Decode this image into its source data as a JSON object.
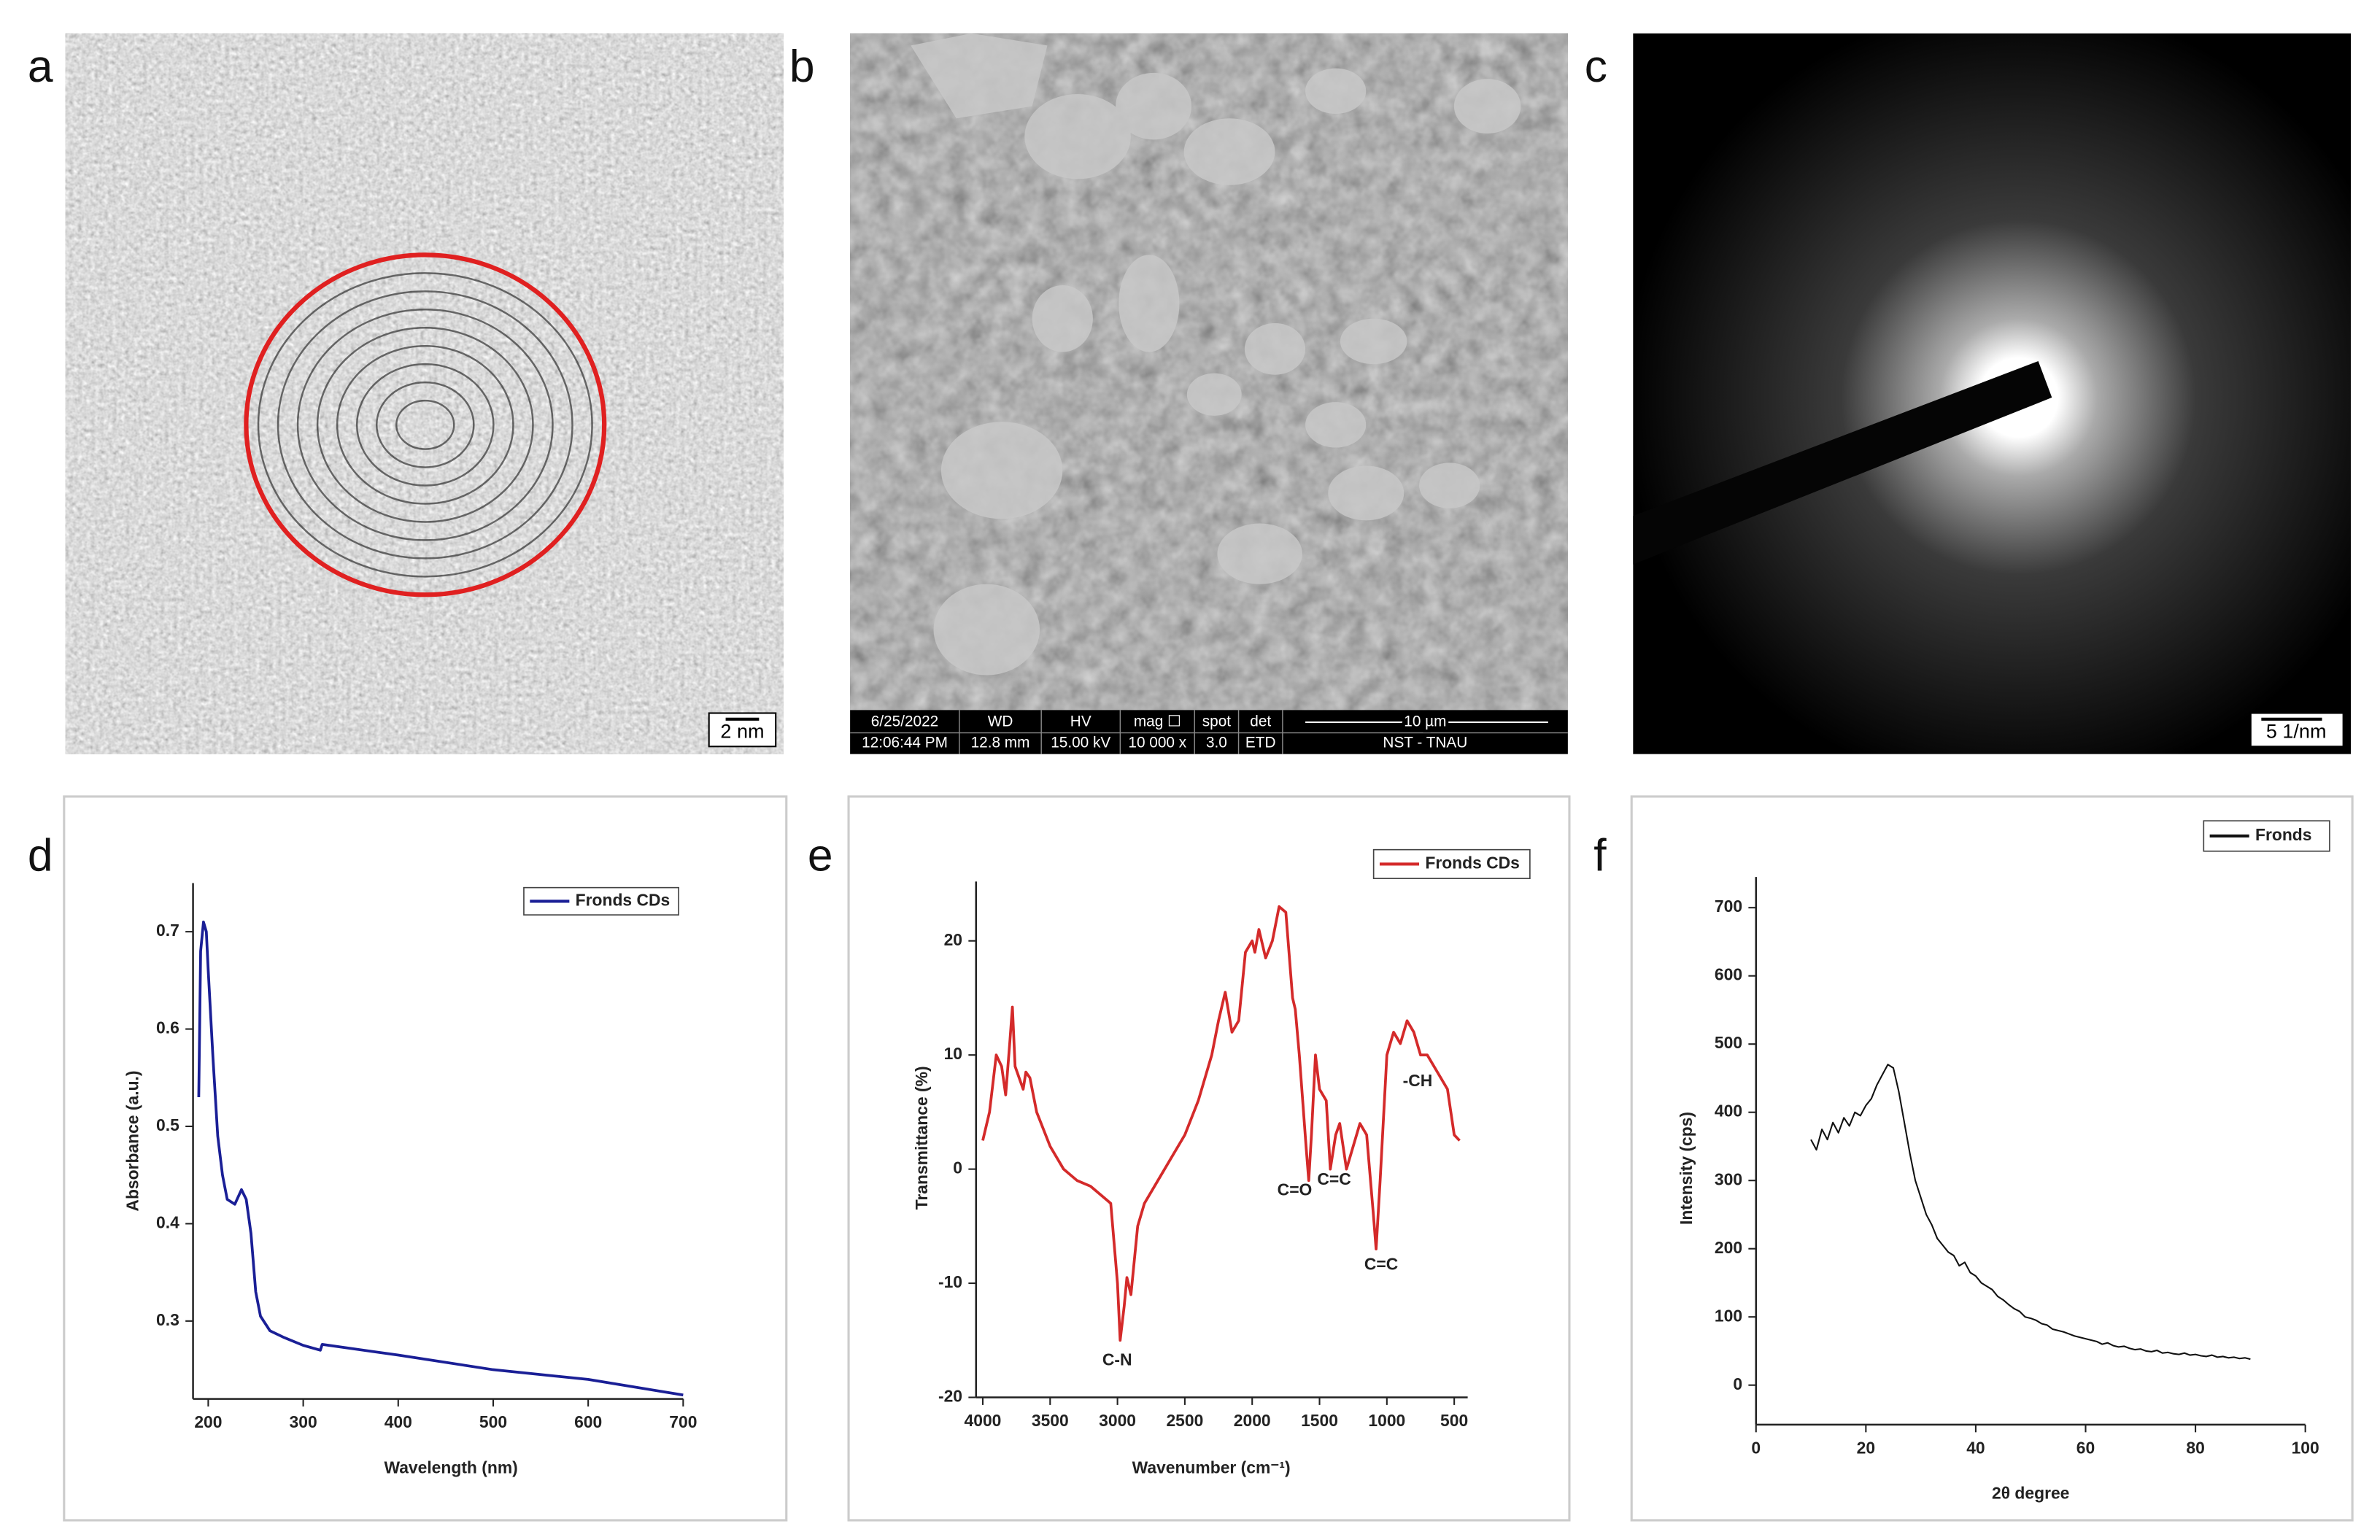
{
  "panel_labels": [
    "a",
    "b",
    "c",
    "d",
    "e",
    "f"
  ],
  "images": {
    "a": {
      "scale_bar": "2 nm"
    },
    "b": {
      "info_bar": {
        "rows": [
          [
            "6/25/2022",
            "WD",
            "HV",
            "mag ☐",
            "spot",
            "det",
            "10 µm"
          ],
          [
            "12:06:44 PM",
            "12.8 mm",
            "15.00 kV",
            "10 000 x",
            "3.0",
            "ETD",
            "NST - TNAU"
          ]
        ]
      }
    },
    "c": {
      "scale_bar": "5 1/nm"
    }
  },
  "chart_data": [
    {
      "type": "line",
      "xlabel": "Wavelength (nm)",
      "ylabel": "Absorbance (a.u.)",
      "xlim": [
        184,
        700
      ],
      "ylim": [
        0.22,
        0.75
      ],
      "xticks": [
        200,
        300,
        400,
        500,
        600,
        700
      ],
      "yticks": [
        0.3,
        0.4,
        0.5,
        0.6,
        0.7
      ],
      "x": [
        190,
        192,
        195,
        198,
        200,
        205,
        210,
        215,
        220,
        228,
        235,
        240,
        245,
        250,
        255,
        265,
        280,
        300,
        318,
        320,
        400,
        500,
        600,
        700
      ],
      "series": [
        {
          "name": "Fronds CDs",
          "color": "#1a1f96",
          "values": [
            0.53,
            0.68,
            0.71,
            0.7,
            0.66,
            0.57,
            0.49,
            0.45,
            0.425,
            0.42,
            0.435,
            0.425,
            0.39,
            0.33,
            0.305,
            0.29,
            0.283,
            0.275,
            0.27,
            0.276,
            0.265,
            0.25,
            0.24,
            0.224
          ]
        }
      ]
    },
    {
      "type": "line",
      "xlabel": "Wavenumber (cm⁻¹)",
      "ylabel": "Transmittance (%)",
      "xlim": [
        4050,
        400
      ],
      "ylim": [
        -20,
        25.2
      ],
      "xticks": [
        4000,
        3500,
        3000,
        2500,
        2000,
        1500,
        1000,
        500
      ],
      "yticks": [
        -20,
        -10,
        0,
        10,
        20
      ],
      "x": [
        4000,
        3950,
        3900,
        3860,
        3830,
        3800,
        3780,
        3760,
        3730,
        3700,
        3680,
        3650,
        3600,
        3500,
        3400,
        3300,
        3200,
        3100,
        3050,
        3000,
        2980,
        2950,
        2930,
        2900,
        2850,
        2800,
        2700,
        2600,
        2500,
        2400,
        2300,
        2250,
        2200,
        2150,
        2100,
        2050,
        2000,
        1980,
        1950,
        1900,
        1850,
        1800,
        1750,
        1700,
        1680,
        1650,
        1600,
        1580,
        1560,
        1530,
        1500,
        1450,
        1420,
        1380,
        1350,
        1300,
        1250,
        1200,
        1150,
        1100,
        1080,
        1050,
        1000,
        950,
        900,
        850,
        800,
        750,
        700,
        650,
        600,
        550,
        500,
        460
      ],
      "series": [
        {
          "name": "Fronds CDs",
          "color": "#d42a2a",
          "values": [
            2.5,
            5,
            10,
            9,
            6.5,
            11,
            14.2,
            9,
            8,
            7,
            8.5,
            8,
            5,
            2,
            0,
            -1,
            -1.5,
            -2.5,
            -3,
            -10,
            -15,
            -12,
            -9.5,
            -11,
            -5,
            -3,
            -1,
            1,
            3,
            6,
            10,
            13,
            15.5,
            12,
            13,
            19,
            20,
            19,
            21,
            18.5,
            20,
            23,
            22.5,
            15,
            14,
            10,
            2,
            -1,
            3,
            10,
            7,
            6,
            0,
            3,
            4,
            0,
            2,
            4,
            3,
            -4,
            -7,
            -1,
            10,
            12,
            11,
            13,
            12,
            10,
            10,
            9,
            8,
            7,
            3,
            2.5
          ]
        }
      ],
      "annotations": [
        "C-N",
        "C=O",
        "C=C",
        "C=C",
        "-CH"
      ]
    },
    {
      "type": "line",
      "xlabel": "2θ degree",
      "ylabel": "Intensity (cps)",
      "xlim": [
        0,
        100
      ],
      "ylim": [
        -58,
        745
      ],
      "xticks": [
        0,
        20,
        40,
        60,
        80,
        100
      ],
      "yticks": [
        0,
        100,
        200,
        300,
        400,
        500,
        600,
        700
      ],
      "x": [
        10,
        11,
        12,
        13,
        14,
        15,
        16,
        17,
        18,
        19,
        20,
        21,
        22,
        23,
        24,
        25,
        26,
        27,
        28,
        29,
        30,
        31,
        32,
        33,
        34,
        35,
        36,
        37,
        38,
        39,
        40,
        41,
        42,
        43,
        44,
        45,
        46,
        47,
        48,
        49,
        50,
        51,
        52,
        53,
        54,
        55,
        56,
        57,
        58,
        59,
        60,
        61,
        62,
        63,
        64,
        65,
        66,
        67,
        68,
        69,
        70,
        71,
        72,
        73,
        74,
        75,
        76,
        77,
        78,
        79,
        80,
        81,
        82,
        83,
        84,
        85,
        86,
        87,
        88,
        89,
        90
      ],
      "series": [
        {
          "name": "Fronds",
          "color": "#111111",
          "values": [
            360,
            345,
            375,
            360,
            385,
            370,
            392,
            380,
            400,
            395,
            410,
            420,
            440,
            455,
            470,
            465,
            430,
            385,
            340,
            300,
            275,
            250,
            235,
            215,
            205,
            195,
            190,
            175,
            180,
            165,
            160,
            150,
            145,
            140,
            130,
            125,
            118,
            112,
            108,
            100,
            98,
            95,
            90,
            88,
            82,
            80,
            78,
            75,
            72,
            70,
            68,
            66,
            64,
            60,
            62,
            58,
            56,
            57,
            54,
            52,
            53,
            50,
            49,
            51,
            47,
            48,
            46,
            45,
            47,
            44,
            45,
            43,
            42,
            44,
            41,
            42,
            40,
            41,
            39,
            40,
            38
          ]
        }
      ]
    }
  ]
}
